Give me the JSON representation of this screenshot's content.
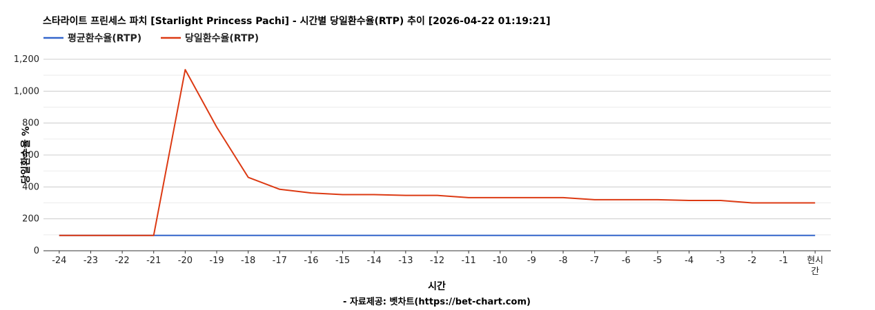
{
  "chart_data": {
    "type": "line",
    "title": "스타라이트 프린세스 파치 [Starlight Princess Pachi] - 시간별 당일환수율(RTP) 추이 [2026-04-22 01:19:21]",
    "xlabel": "시간",
    "ylabel": "당일환수율 %",
    "credit": "- 자료제공: 벳차트(https://bet-chart.com)",
    "categories": [
      "-24",
      "-23",
      "-22",
      "-21",
      "-20",
      "-19",
      "-18",
      "-17",
      "-16",
      "-15",
      "-14",
      "-13",
      "-12",
      "-11",
      "-10",
      "-9",
      "-8",
      "-7",
      "-6",
      "-5",
      "-4",
      "-3",
      "-2",
      "-1",
      "현시간"
    ],
    "ylim": [
      0,
      1200
    ],
    "yticks": [
      "0",
      "200",
      "400",
      "600",
      "800",
      "1,000",
      "1,200"
    ],
    "grid": true,
    "legend_position": "top-left",
    "series": [
      {
        "name": "평균환수율(RTP)",
        "color": "#3366cc",
        "values": [
          96,
          96,
          96,
          96,
          96,
          96,
          96,
          96,
          96,
          96,
          96,
          96,
          96,
          96,
          96,
          96,
          96,
          96,
          96,
          96,
          96,
          96,
          96,
          96,
          96
        ]
      },
      {
        "name": "당일환수율(RTP)",
        "color": "#dc3912",
        "values": [
          96,
          96,
          96,
          96,
          1135,
          775,
          460,
          385,
          362,
          352,
          352,
          347,
          347,
          333,
          333,
          333,
          333,
          320,
          320,
          320,
          315,
          315,
          300,
          300,
          300
        ]
      }
    ]
  }
}
